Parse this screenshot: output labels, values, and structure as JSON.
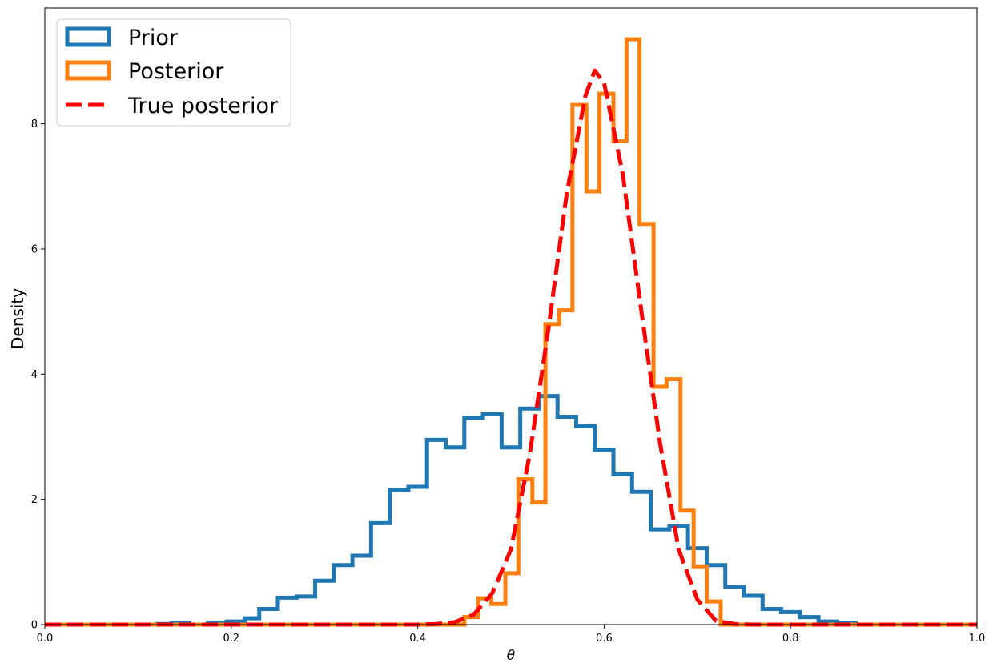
{
  "chart_data": {
    "type": "histogram",
    "xlabel": "θ",
    "ylabel": "Density",
    "xlim": [
      0,
      1
    ],
    "ylim": [
      0,
      9.85
    ],
    "x_ticks": [
      0.0,
      0.2,
      0.4,
      0.6,
      0.8,
      1.0
    ],
    "x_tick_labels": [
      "0.0",
      "0.2",
      "0.4",
      "0.6",
      "0.8",
      "1.0"
    ],
    "y_ticks": [
      0,
      2,
      4,
      6,
      8
    ],
    "y_tick_labels": [
      "0",
      "2",
      "4",
      "6",
      "8"
    ],
    "grid": false,
    "legend_position": "top-left",
    "legend": [
      {
        "label": "Prior",
        "style": "step-outline",
        "color": "#1f77b4"
      },
      {
        "label": "Posterior",
        "style": "step-outline",
        "color": "#ff7f0e"
      },
      {
        "label": "True posterior",
        "style": "dashed-line",
        "color": "#ff0000"
      }
    ],
    "series": [
      {
        "name": "Prior",
        "type": "step-histogram",
        "color": "#1f77b4",
        "bin_edges": [
          0.0,
          0.12,
          0.136,
          0.155,
          0.175,
          0.195,
          0.215,
          0.23,
          0.25,
          0.27,
          0.29,
          0.31,
          0.33,
          0.35,
          0.37,
          0.39,
          0.41,
          0.43,
          0.45,
          0.47,
          0.49,
          0.51,
          0.53,
          0.55,
          0.57,
          0.59,
          0.61,
          0.63,
          0.65,
          0.67,
          0.69,
          0.71,
          0.73,
          0.75,
          0.77,
          0.79,
          0.81,
          0.83,
          0.85,
          0.87,
          1.0
        ],
        "values": [
          0.0,
          0.01,
          0.02,
          0.0,
          0.03,
          0.05,
          0.1,
          0.25,
          0.43,
          0.45,
          0.7,
          0.95,
          1.1,
          1.62,
          2.15,
          2.2,
          2.95,
          2.83,
          3.3,
          3.36,
          2.83,
          3.45,
          3.65,
          3.32,
          3.17,
          2.79,
          2.4,
          2.12,
          1.52,
          1.57,
          1.22,
          0.95,
          0.6,
          0.46,
          0.25,
          0.2,
          0.12,
          0.05,
          0.02,
          0.0
        ]
      },
      {
        "name": "Posterior",
        "type": "step-histogram",
        "color": "#ff7f0e",
        "bin_edges": [
          0.0,
          0.45,
          0.465,
          0.479,
          0.494,
          0.508,
          0.523,
          0.537,
          0.552,
          0.566,
          0.581,
          0.595,
          0.61,
          0.624,
          0.638,
          0.653,
          0.667,
          0.682,
          0.696,
          0.71,
          0.725,
          1.0
        ],
        "values": [
          0.0,
          0.12,
          0.42,
          0.33,
          0.82,
          2.32,
          1.95,
          4.8,
          5.02,
          8.3,
          6.92,
          8.48,
          7.72,
          9.35,
          6.4,
          3.8,
          3.92,
          1.82,
          0.93,
          0.37,
          0.0
        ]
      },
      {
        "name": "True posterior",
        "type": "line",
        "style": "dashed",
        "color": "#ff0000",
        "x": [
          0.0,
          0.4,
          0.42,
          0.44,
          0.46,
          0.48,
          0.5,
          0.52,
          0.54,
          0.56,
          0.58,
          0.59,
          0.6,
          0.62,
          0.64,
          0.66,
          0.68,
          0.7,
          0.72,
          0.74,
          0.76,
          0.8,
          0.9,
          1.0
        ],
        "y": [
          0.0,
          0.0,
          0.01,
          0.04,
          0.16,
          0.5,
          1.2,
          2.7,
          4.7,
          6.9,
          8.45,
          8.85,
          8.65,
          7.2,
          5.0,
          2.9,
          1.2,
          0.4,
          0.06,
          0.01,
          0.0,
          0.0,
          0.0,
          0.0
        ]
      }
    ]
  }
}
